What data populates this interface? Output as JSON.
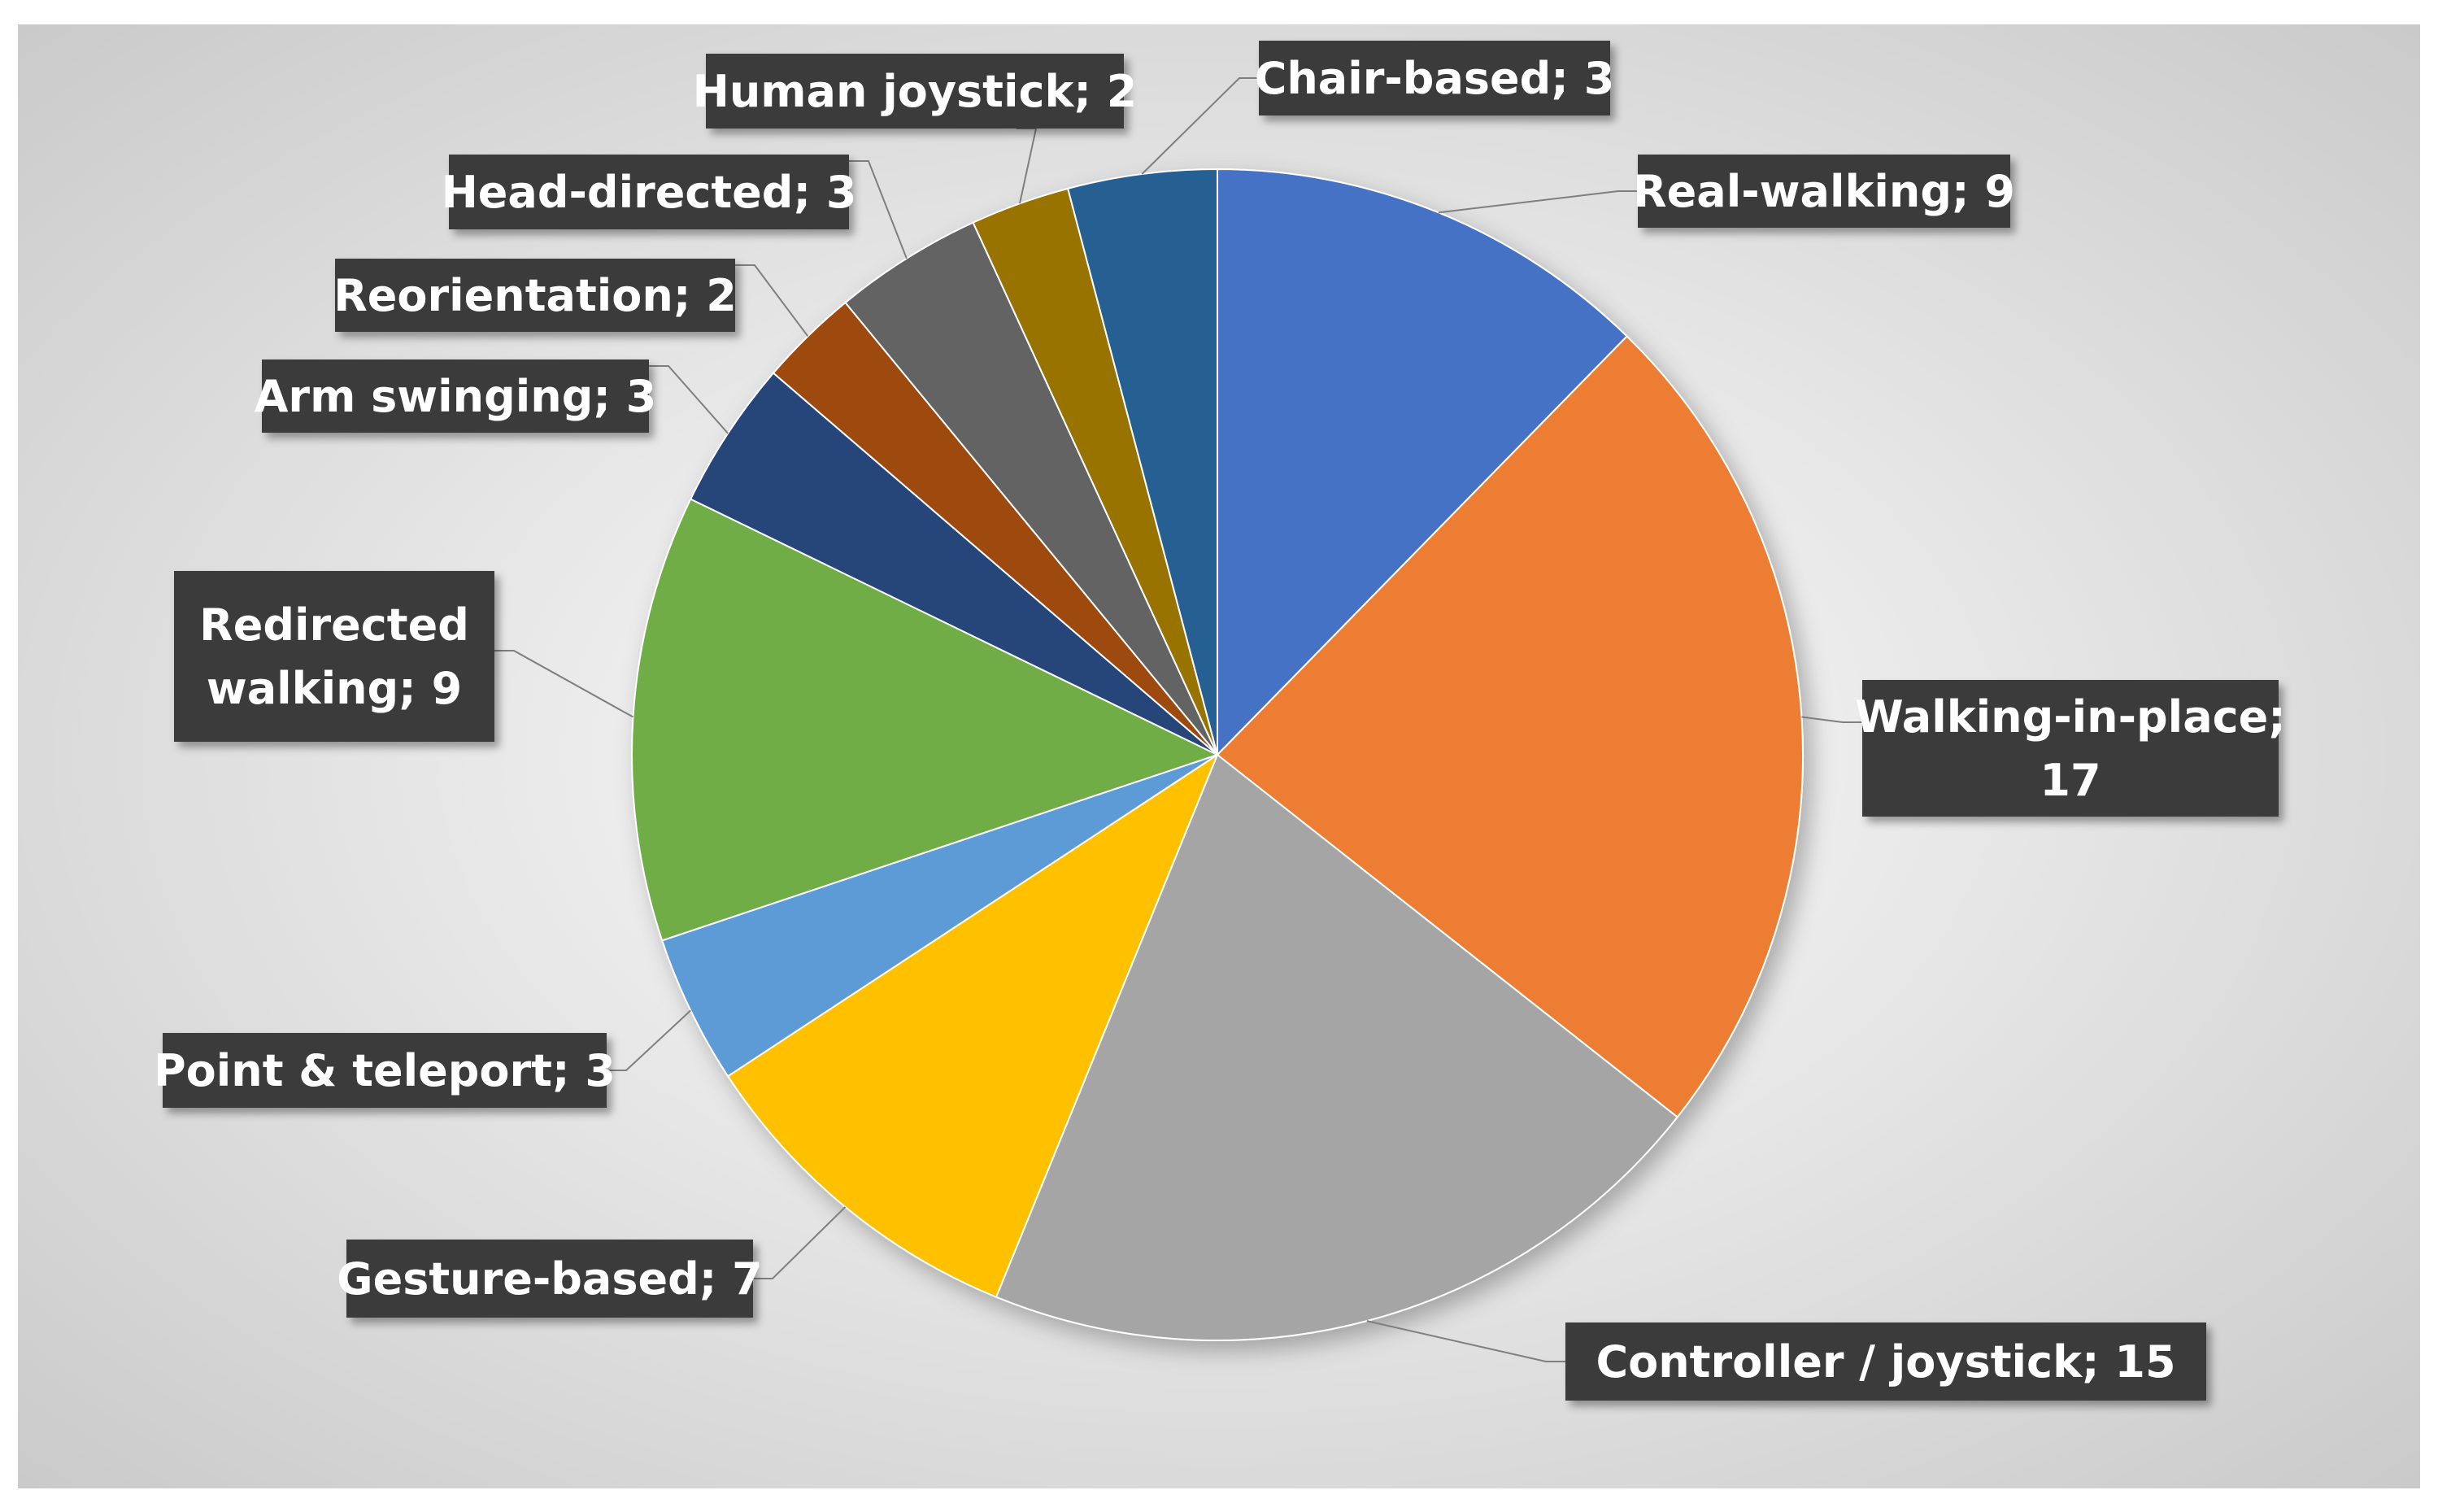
{
  "chart_data": {
    "type": "pie",
    "title": "",
    "categories": [
      "Real-walking",
      "Walking-in-place",
      "Controller / joystick",
      "Gesture-based",
      "Point & teleport",
      "Redirected walking",
      "Arm swinging",
      "Reorientation",
      "Head-directed",
      "Human joystick",
      "Chair-based"
    ],
    "values": [
      9,
      17,
      15,
      7,
      3,
      9,
      3,
      2,
      3,
      2,
      3
    ],
    "colors": [
      "#4472C4",
      "#ED7D31",
      "#A5A5A5",
      "#FFC000",
      "#5B9BD5",
      "#70AD47",
      "#264478",
      "#9E480E",
      "#636363",
      "#997300",
      "#255E91"
    ],
    "data_labels": [
      [
        "Real-walking;  9"
      ],
      [
        "Walking-in-place;",
        "17"
      ],
      [
        "Controller / joystick; 15"
      ],
      [
        "Gesture-based; 7"
      ],
      [
        "Point & teleport; 3"
      ],
      [
        "Redirected",
        "walking;  9"
      ],
      [
        "Arm swinging; 3"
      ],
      [
        "Reorientation; 2"
      ],
      [
        "Head-directed; 3"
      ],
      [
        "Human joystick;  2"
      ],
      [
        "Chair-based; 3"
      ]
    ],
    "legend": "none",
    "label_style": {
      "box_color": "#3A3A3A",
      "text_color": "#FFFFFF",
      "leader_color": "#7F7F7F"
    },
    "background": {
      "center": "#FFFFFF",
      "edge": "#C9C9C9"
    }
  }
}
